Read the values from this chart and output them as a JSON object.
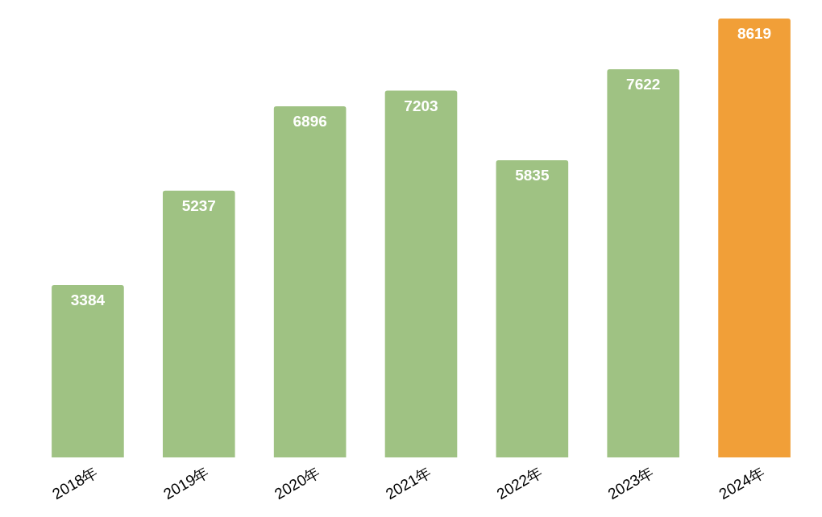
{
  "chart_data": {
    "type": "bar",
    "categories": [
      "2018年",
      "2019年",
      "2020年",
      "2021年",
      "2022年",
      "2023年",
      "2024年"
    ],
    "values": [
      3384,
      5237,
      6896,
      7203,
      5835,
      7622,
      8619
    ],
    "colors": [
      "#9fc283",
      "#9fc283",
      "#9fc283",
      "#9fc283",
      "#9fc283",
      "#9fc283",
      "#f19f38"
    ],
    "data_labels": true
  }
}
